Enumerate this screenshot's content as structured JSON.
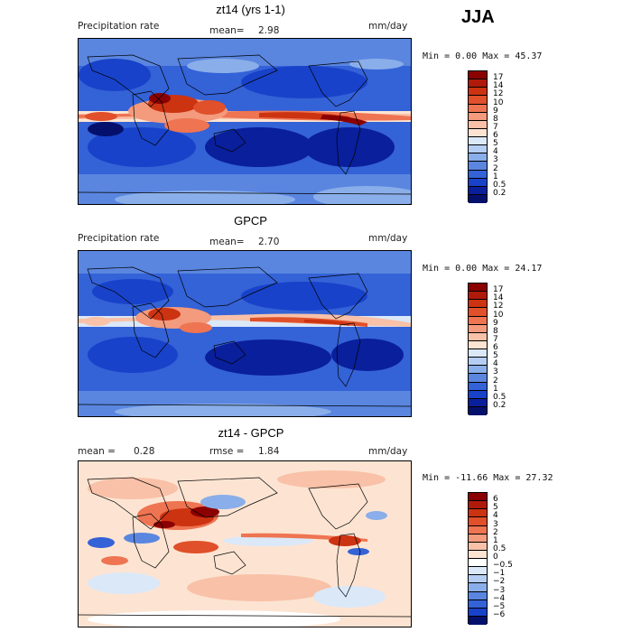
{
  "season": "JJA",
  "panels": [
    {
      "title": "zt14 (yrs 1-1)",
      "left_label": "Precipitation rate",
      "mean_label": "mean=",
      "mean_value": "2.98",
      "units": "mm/day",
      "minmax": "Min =   0.00 Max =  45.37",
      "scale": "precip",
      "levels": [
        "17",
        "14",
        "12",
        "10",
        "9",
        "8",
        "7",
        "6",
        "5",
        "4",
        "3",
        "2",
        "1",
        "0.5",
        "0.2"
      ]
    },
    {
      "title": "GPCP",
      "left_label": "Precipitation rate",
      "mean_label": "mean=",
      "mean_value": "2.70",
      "units": "mm/day",
      "minmax": "Min =   0.00 Max =  24.17",
      "scale": "precip",
      "levels": [
        "17",
        "14",
        "12",
        "10",
        "9",
        "8",
        "7",
        "6",
        "5",
        "4",
        "3",
        "2",
        "1",
        "0.5",
        "0.2"
      ]
    },
    {
      "title": "zt14 - GPCP",
      "left_label": "mean =",
      "left_value": "0.28",
      "mean_label": "rmse =",
      "mean_value": "1.84",
      "units": "mm/day",
      "minmax": "Min = -11.66 Max =  27.32",
      "scale": "diff",
      "levels": [
        "6",
        "5",
        "4",
        "3",
        "2",
        "1",
        "0.5",
        "0",
        "−0.5",
        "−1",
        "−2",
        "−3",
        "−4",
        "−5",
        "−6"
      ]
    }
  ],
  "colors": {
    "precip": [
      "#8b0000",
      "#b01a0a",
      "#cc3311",
      "#e0502a",
      "#ee7452",
      "#f49a7d",
      "#f8c1a8",
      "#fde4d2",
      "#dbe8f8",
      "#b5cdf2",
      "#8aaee9",
      "#5a86e0",
      "#3462d7",
      "#1842c9",
      "#0a1f9c",
      "#05106c"
    ],
    "diff": [
      "#8b0000",
      "#b01a0a",
      "#cc3311",
      "#e0502a",
      "#ee7452",
      "#f49a7d",
      "#f8c1a8",
      "#fde4d2",
      "#ffffff",
      "#dbe8f8",
      "#b5cdf2",
      "#8aaee9",
      "#5a86e0",
      "#3462d7",
      "#1842c9",
      "#05106c"
    ]
  }
}
